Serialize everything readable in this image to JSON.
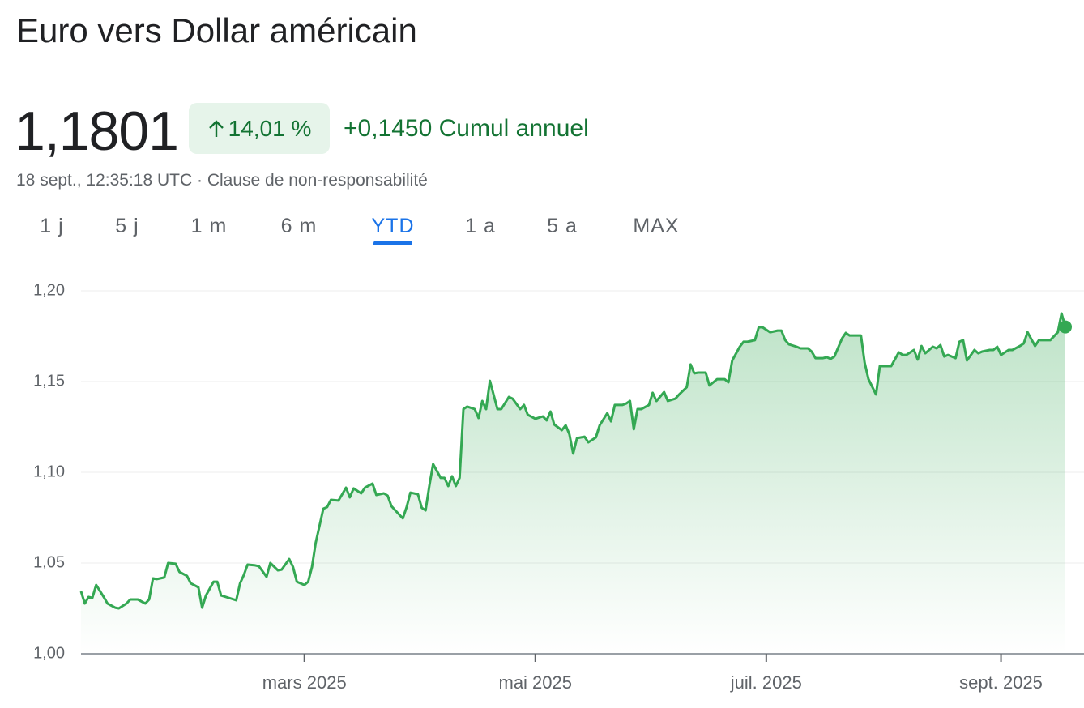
{
  "header": {
    "title": "Euro vers Dollar américain",
    "price": "1,1801",
    "change_percent": "14,01 %",
    "change_value": "+0,1450",
    "change_period": "Cumul annuel",
    "timestamp": "18 sept., 12:35:18 UTC",
    "separator": "·",
    "disclaimer": "Clause de non-responsabilité"
  },
  "range_tabs": {
    "options": [
      "1 j",
      "5 j",
      "1 m",
      "6 m",
      "YTD",
      "1 a",
      "5 a",
      "MAX"
    ],
    "selected": 4
  },
  "chart_data": {
    "type": "area",
    "color": "#34a853",
    "grid": true,
    "x": [
      0,
      1,
      2,
      3,
      4,
      6,
      7,
      9,
      10,
      12,
      13,
      15,
      17,
      18,
      19,
      20,
      22,
      23,
      25,
      26,
      28,
      29,
      31,
      32,
      33,
      35,
      36,
      37,
      39,
      41,
      42,
      43,
      44,
      46,
      47,
      49,
      50,
      52,
      53,
      55,
      56,
      57,
      59,
      60,
      61,
      62,
      64,
      65,
      66,
      68,
      69,
      70,
      71,
      72,
      74,
      75,
      77,
      78,
      80,
      81,
      82,
      83,
      85,
      86,
      87,
      89,
      90,
      91,
      92,
      93,
      95,
      96,
      97,
      98,
      99,
      100,
      101,
      102,
      104,
      105,
      106,
      107,
      108,
      110,
      111,
      113,
      114,
      116,
      117,
      118,
      120,
      122,
      123,
      124,
      125,
      127,
      128,
      129,
      130,
      131,
      133,
      134,
      136,
      137,
      139,
      140,
      141,
      143,
      144,
      145,
      146,
      147,
      148,
      150,
      151,
      152,
      154,
      155,
      157,
      158,
      160,
      161,
      162,
      163,
      165,
      166,
      168,
      170,
      171,
      172,
      174,
      175,
      176,
      178,
      179,
      180,
      182,
      184,
      185,
      186,
      187,
      189,
      190,
      192,
      193,
      194,
      196,
      197,
      198,
      199,
      201,
      202,
      203,
      205,
      206,
      207,
      208,
      210,
      211,
      213,
      214,
      216,
      217,
      218,
      220,
      221,
      222,
      223,
      225,
      226,
      227,
      228,
      229,
      231,
      232,
      233,
      234,
      236,
      237,
      238,
      240,
      241,
      242,
      243,
      245,
      246,
      248,
      249,
      250,
      252,
      253,
      255,
      256,
      258,
      259,
      260
    ],
    "values": [
      1.0344,
      1.0277,
      1.0313,
      1.0308,
      1.0379,
      1.0313,
      1.0277,
      1.0254,
      1.025,
      1.0277,
      1.0299,
      1.0299,
      1.0277,
      1.0299,
      1.0415,
      1.0411,
      1.042,
      1.05,
      1.0496,
      1.0451,
      1.0429,
      1.0388,
      1.0366,
      1.0254,
      1.0321,
      1.0397,
      1.0397,
      1.0321,
      1.0308,
      1.0295,
      1.0388,
      1.0433,
      1.0491,
      1.0487,
      1.0482,
      1.0424,
      1.05,
      1.046,
      1.0464,
      1.0522,
      1.0478,
      1.0397,
      1.0379,
      1.0397,
      1.0478,
      1.0612,
      1.0799,
      1.0808,
      1.0848,
      1.0844,
      1.0879,
      1.0915,
      1.0862,
      1.0911,
      1.0884,
      1.0915,
      1.0938,
      1.0875,
      1.0884,
      1.0871,
      1.0813,
      1.079,
      1.0746,
      1.0808,
      1.0888,
      1.0879,
      1.0804,
      1.079,
      1.0924,
      1.1045,
      1.0969,
      1.0969,
      1.0924,
      1.0978,
      1.0924,
      1.0969,
      1.1348,
      1.1362,
      1.1348,
      1.1299,
      1.1393,
      1.1348,
      1.1504,
      1.1348,
      1.1348,
      1.1415,
      1.1406,
      1.1348,
      1.1371,
      1.1317,
      1.1295,
      1.1308,
      1.1286,
      1.1335,
      1.1263,
      1.1232,
      1.1259,
      1.121,
      1.1103,
      1.1188,
      1.1196,
      1.1165,
      1.1192,
      1.1259,
      1.1326,
      1.1281,
      1.1371,
      1.1371,
      1.1379,
      1.1393,
      1.1237,
      1.1348,
      1.1348,
      1.1371,
      1.1438,
      1.1393,
      1.1442,
      1.1393,
      1.1406,
      1.1429,
      1.1469,
      1.1594,
      1.1545,
      1.1549,
      1.1549,
      1.1478,
      1.1513,
      1.1513,
      1.1496,
      1.1616,
      1.1692,
      1.1719,
      1.1719,
      1.1728,
      1.1799,
      1.1799,
      1.1772,
      1.1781,
      1.1781,
      1.1728,
      1.1705,
      1.1692,
      1.1683,
      1.1683,
      1.1665,
      1.1629,
      1.1629,
      1.1634,
      1.1625,
      1.1638,
      1.1737,
      1.1768,
      1.1754,
      1.1754,
      1.1754,
      1.1603,
      1.1513,
      1.1429,
      1.1585,
      1.1585,
      1.1585,
      1.1661,
      1.1647,
      1.1647,
      1.1674,
      1.1621,
      1.1696,
      1.1656,
      1.1692,
      1.1683,
      1.1701,
      1.1638,
      1.1647,
      1.1629,
      1.1719,
      1.1728,
      1.1616,
      1.1674,
      1.1656,
      1.1665,
      1.1674,
      1.1674,
      1.1692,
      1.1647,
      1.1674,
      1.1674,
      1.1696,
      1.171,
      1.1772,
      1.1696,
      1.1728,
      1.1728,
      1.1728,
      1.1772,
      1.1875,
      1.1801
    ],
    "xlim": [
      0,
      260
    ],
    "xticks": [
      {
        "value": 59,
        "label": "mars 2025"
      },
      {
        "value": 120,
        "label": "mai 2025"
      },
      {
        "value": 181,
        "label": "juil. 2025"
      },
      {
        "value": 243,
        "label": "sept. 2025"
      }
    ],
    "ylim": [
      1.0,
      1.2
    ],
    "yticks": [
      {
        "value": 1.0,
        "label": "1,00"
      },
      {
        "value": 1.05,
        "label": "1,05"
      },
      {
        "value": 1.1,
        "label": "1,10"
      },
      {
        "value": 1.15,
        "label": "1,15"
      },
      {
        "value": 1.2,
        "label": "1,20"
      }
    ]
  }
}
